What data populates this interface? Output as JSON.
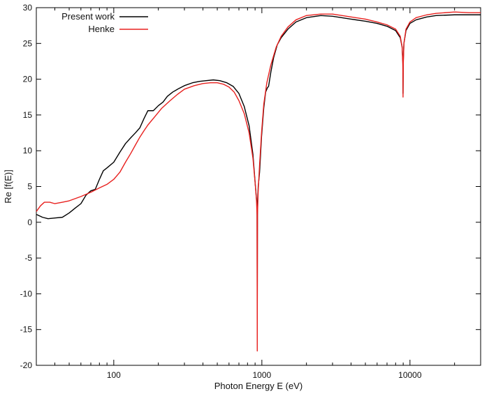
{
  "chart_data": {
    "type": "line",
    "title": "",
    "xlabel": "Photon Energy E (eV)",
    "ylabel": "Re [f(E)]",
    "xscale": "log",
    "xlim": [
      30,
      30000
    ],
    "ylim": [
      -20,
      30
    ],
    "x_tick_values": [
      100,
      1000,
      10000
    ],
    "x_tick_labels": [
      "100",
      "1000",
      "10000"
    ],
    "y_tick_values": [
      -20,
      -15,
      -10,
      -5,
      0,
      5,
      10,
      15,
      20,
      25,
      30
    ],
    "y_tick_labels": [
      "-20",
      "-15",
      "-10",
      "-5",
      "0",
      "5",
      "10",
      "15",
      "20",
      "25",
      "30"
    ],
    "grid": false,
    "legend_position": "top-left",
    "series": [
      {
        "name": "Present work",
        "color": "#000000",
        "points": [
          [
            30,
            1.1
          ],
          [
            33,
            0.7
          ],
          [
            36,
            0.5
          ],
          [
            40,
            0.6
          ],
          [
            45,
            0.7
          ],
          [
            50,
            1.3
          ],
          [
            55,
            2.0
          ],
          [
            60,
            2.6
          ],
          [
            65,
            3.8
          ],
          [
            70,
            4.4
          ],
          [
            75,
            4.6
          ],
          [
            80,
            6.0
          ],
          [
            85,
            7.2
          ],
          [
            90,
            7.6
          ],
          [
            100,
            8.4
          ],
          [
            110,
            9.8
          ],
          [
            120,
            11.0
          ],
          [
            130,
            11.8
          ],
          [
            140,
            12.5
          ],
          [
            150,
            13.2
          ],
          [
            160,
            14.5
          ],
          [
            170,
            15.6
          ],
          [
            185,
            15.6
          ],
          [
            200,
            16.3
          ],
          [
            215,
            16.8
          ],
          [
            230,
            17.6
          ],
          [
            250,
            18.2
          ],
          [
            275,
            18.7
          ],
          [
            300,
            19.1
          ],
          [
            340,
            19.5
          ],
          [
            380,
            19.7
          ],
          [
            420,
            19.8
          ],
          [
            470,
            19.9
          ],
          [
            520,
            19.8
          ],
          [
            580,
            19.5
          ],
          [
            640,
            19.0
          ],
          [
            700,
            18.0
          ],
          [
            760,
            16.2
          ],
          [
            820,
            13.5
          ],
          [
            870,
            9.5
          ],
          [
            905,
            5.0
          ],
          [
            920,
            3.2
          ],
          [
            928,
            2.5
          ],
          [
            931,
            -12.5
          ],
          [
            934,
            2.5
          ],
          [
            945,
            5.0
          ],
          [
            965,
            7.0
          ],
          [
            995,
            12.0
          ],
          [
            1030,
            16.0
          ],
          [
            1060,
            18.2
          ],
          [
            1090,
            18.8
          ],
          [
            1110,
            19.0
          ],
          [
            1150,
            21.0
          ],
          [
            1200,
            23.0
          ],
          [
            1270,
            24.8
          ],
          [
            1350,
            25.8
          ],
          [
            1500,
            27.0
          ],
          [
            1700,
            28.0
          ],
          [
            2000,
            28.6
          ],
          [
            2500,
            28.9
          ],
          [
            3000,
            28.8
          ],
          [
            4000,
            28.4
          ],
          [
            5000,
            28.1
          ],
          [
            6000,
            27.8
          ],
          [
            7000,
            27.4
          ],
          [
            8000,
            26.8
          ],
          [
            8600,
            25.8
          ],
          [
            8850,
            24.5
          ],
          [
            8950,
            22.5
          ],
          [
            8979,
            18.0
          ],
          [
            9010,
            22.5
          ],
          [
            9100,
            25.0
          ],
          [
            9400,
            26.8
          ],
          [
            10000,
            27.8
          ],
          [
            11000,
            28.3
          ],
          [
            13000,
            28.7
          ],
          [
            15000,
            28.9
          ],
          [
            20000,
            29.0
          ],
          [
            25000,
            29.0
          ],
          [
            30000,
            29.0
          ]
        ]
      },
      {
        "name": "Henke",
        "color": "#e8201e",
        "points": [
          [
            30,
            1.5
          ],
          [
            32,
            2.3
          ],
          [
            34,
            2.8
          ],
          [
            37,
            2.8
          ],
          [
            40,
            2.6
          ],
          [
            45,
            2.8
          ],
          [
            50,
            3.0
          ],
          [
            60,
            3.6
          ],
          [
            70,
            4.2
          ],
          [
            80,
            4.8
          ],
          [
            90,
            5.3
          ],
          [
            100,
            6.0
          ],
          [
            110,
            7.0
          ],
          [
            120,
            8.4
          ],
          [
            130,
            9.6
          ],
          [
            140,
            10.8
          ],
          [
            150,
            11.9
          ],
          [
            160,
            12.8
          ],
          [
            170,
            13.6
          ],
          [
            190,
            14.8
          ],
          [
            210,
            15.9
          ],
          [
            240,
            17.0
          ],
          [
            270,
            17.9
          ],
          [
            300,
            18.6
          ],
          [
            350,
            19.1
          ],
          [
            400,
            19.4
          ],
          [
            450,
            19.5
          ],
          [
            500,
            19.5
          ],
          [
            550,
            19.3
          ],
          [
            600,
            18.9
          ],
          [
            650,
            18.2
          ],
          [
            700,
            17.0
          ],
          [
            760,
            15.2
          ],
          [
            820,
            12.5
          ],
          [
            870,
            9.0
          ],
          [
            905,
            5.0
          ],
          [
            920,
            3.0
          ],
          [
            928,
            1.0
          ],
          [
            931,
            -18.0
          ],
          [
            934,
            1.0
          ],
          [
            945,
            4.5
          ],
          [
            965,
            8.0
          ],
          [
            995,
            12.5
          ],
          [
            1030,
            16.5
          ],
          [
            1080,
            19.5
          ],
          [
            1150,
            22.0
          ],
          [
            1250,
            24.5
          ],
          [
            1350,
            26.0
          ],
          [
            1500,
            27.3
          ],
          [
            1700,
            28.3
          ],
          [
            2000,
            28.9
          ],
          [
            2500,
            29.1
          ],
          [
            3000,
            29.1
          ],
          [
            4000,
            28.7
          ],
          [
            5000,
            28.4
          ],
          [
            6000,
            28.0
          ],
          [
            7000,
            27.6
          ],
          [
            8000,
            27.0
          ],
          [
            8600,
            26.0
          ],
          [
            8850,
            24.5
          ],
          [
            8950,
            22.0
          ],
          [
            8979,
            17.5
          ],
          [
            9010,
            22.0
          ],
          [
            9100,
            25.0
          ],
          [
            9400,
            27.0
          ],
          [
            10000,
            28.0
          ],
          [
            11000,
            28.6
          ],
          [
            13000,
            29.0
          ],
          [
            15000,
            29.2
          ],
          [
            20000,
            29.4
          ],
          [
            25000,
            29.3
          ],
          [
            30000,
            29.3
          ]
        ]
      }
    ]
  }
}
